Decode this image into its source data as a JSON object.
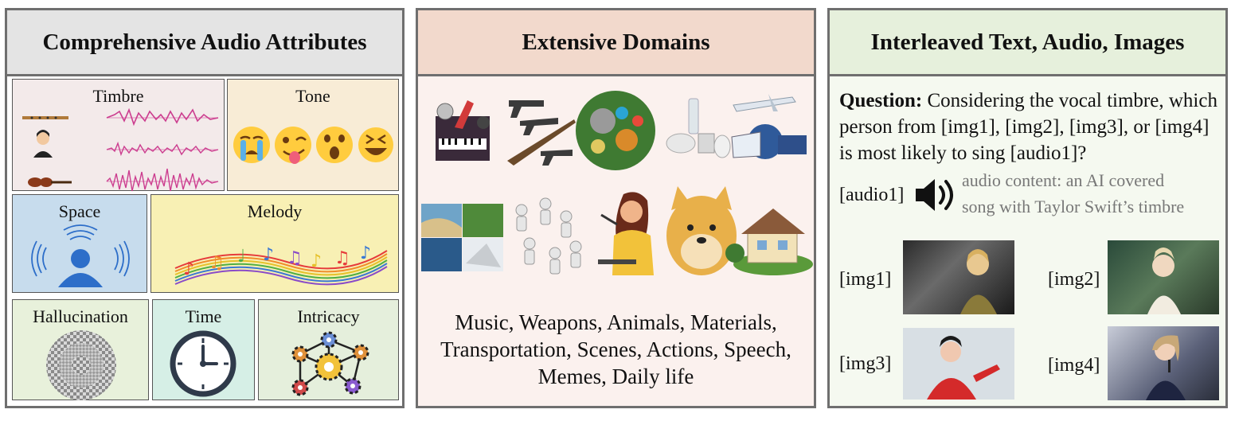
{
  "panel1": {
    "title": "Comprehensive Audio Attributes",
    "cells": {
      "timbre": "Timbre",
      "tone": "Tone",
      "space": "Space",
      "melody": "Melody",
      "hallucination": "Hallucination",
      "time": "Time",
      "intricacy": "Intricacy"
    },
    "colors": {
      "header": "#e4e4e4",
      "timbre": "#f3eaea",
      "tone": "#f8ecd6",
      "space": "#c7dced",
      "melody": "#f8f0b4",
      "hallucination": "#e8f1db",
      "time": "#d6efe6",
      "intricacy": "#e5efdc"
    }
  },
  "panel2": {
    "title": "Extensive Domains",
    "domains_lines": [
      "Music, Weapons, Animals, Materials,",
      "Transportation, Scenes, Actions, Speech,",
      "Memes, Daily life"
    ],
    "colors": {
      "header": "#f2d9cc",
      "body": "#fbf1ee"
    }
  },
  "panel3": {
    "title": "Interleaved Text, Audio, Images",
    "question_label": "Question:",
    "question_text": " Considering the vocal timbre, which person from [img1], [img2], [img3], or [img4] is most likely to sing [audio1]?",
    "audio_tag": "[audio1]",
    "audio_note_line1": "audio content: an AI covered",
    "audio_note_line2": "song with Taylor Swift’s timbre",
    "images": [
      "[img1]",
      "[img2]",
      "[img3]",
      "[img4]"
    ],
    "colors": {
      "header": "#e6f0dc",
      "body": "#f5f9f0"
    }
  }
}
